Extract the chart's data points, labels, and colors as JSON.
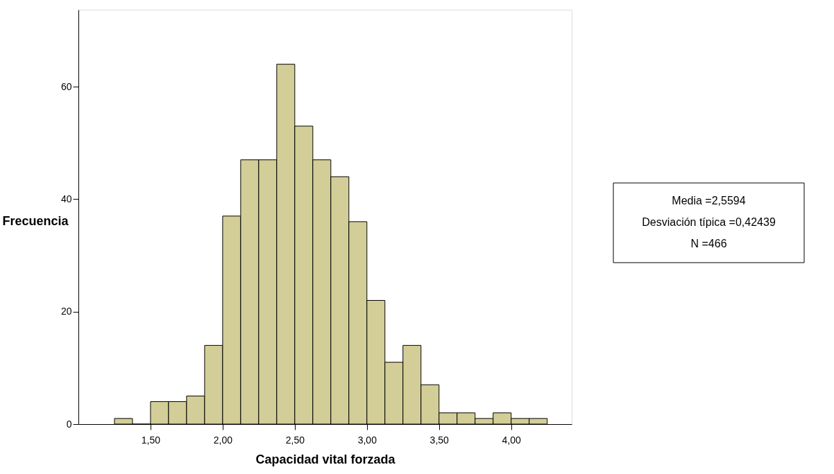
{
  "chart_data": {
    "type": "histogram",
    "xlabel": "Capacidad vital forzada",
    "ylabel": "Frecuencia",
    "bins": [
      1.25,
      1.375,
      1.5,
      1.625,
      1.75,
      1.875,
      2.0,
      2.125,
      2.25,
      2.375,
      2.5,
      2.625,
      2.75,
      2.875,
      3.0,
      3.125,
      3.25,
      3.375,
      3.5,
      3.625,
      3.75,
      3.875,
      4.0,
      4.125,
      4.25
    ],
    "values": [
      1,
      0,
      4,
      4,
      5,
      14,
      37,
      47,
      47,
      64,
      53,
      47,
      44,
      36,
      22,
      11,
      14,
      7,
      2,
      2,
      1,
      2,
      1,
      1
    ],
    "color": "#d3ce97",
    "xlim": [
      1.0,
      4.42
    ],
    "ylim": [
      0,
      73.7
    ],
    "xticks": [
      {
        "value": 1.5,
        "label": "1,50"
      },
      {
        "value": 2.0,
        "label": "2,00"
      },
      {
        "value": 2.5,
        "label": "2,50"
      },
      {
        "value": 3.0,
        "label": "3,00"
      },
      {
        "value": 3.5,
        "label": "3,50"
      },
      {
        "value": 4.0,
        "label": "4,00"
      }
    ],
    "yticks": [
      0,
      20,
      40,
      60
    ],
    "grid": false,
    "annotations": [
      "Media =2,5594",
      "Desviación típica =0,42439",
      "N =466"
    ]
  }
}
